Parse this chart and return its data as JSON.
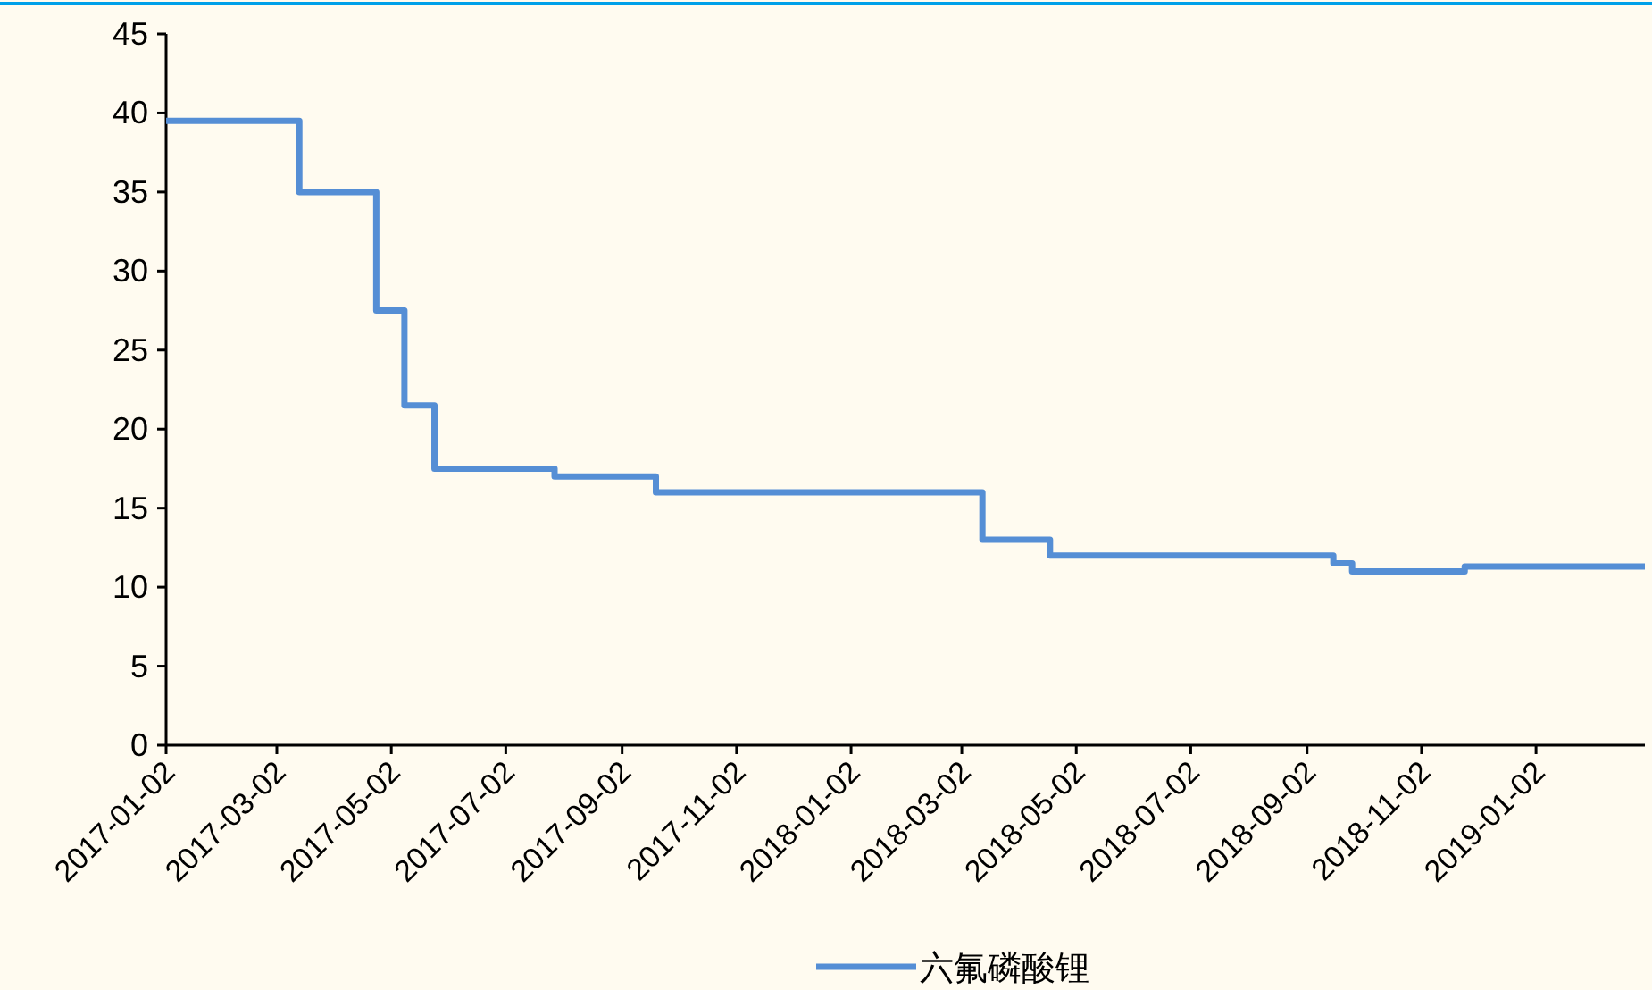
{
  "chart_data": {
    "type": "step",
    "x": [
      "2017-01-02",
      "2017-03-14",
      "2017-04-24",
      "2017-05-09",
      "2017-05-25",
      "2017-07-28",
      "2017-09-20",
      "2018-03-13",
      "2018-04-18",
      "2018-09-16",
      "2018-09-26",
      "2018-11-25",
      "2019-03-01"
    ],
    "series": [
      {
        "name": "六氟磷酸锂",
        "color": "#558ed5",
        "values": [
          39.5,
          35,
          27.5,
          21.5,
          17.5,
          17,
          16,
          13,
          12,
          11.5,
          11,
          11.3,
          11.3
        ]
      }
    ],
    "xlim": [
      "2017-01-02",
      "2019-03-01"
    ],
    "xticks": [
      "2017-01-02",
      "2017-03-02",
      "2017-05-02",
      "2017-07-02",
      "2017-09-02",
      "2017-11-02",
      "2018-01-02",
      "2018-03-02",
      "2018-05-02",
      "2018-07-02",
      "2018-09-02",
      "2018-11-02",
      "2019-01-02"
    ],
    "ylim": [
      0,
      45
    ],
    "yticks": [
      0,
      5,
      10,
      15,
      20,
      25,
      30,
      35,
      40,
      45
    ],
    "grid": false,
    "legend": "bottom",
    "line_style": "solid",
    "marker": "none"
  }
}
